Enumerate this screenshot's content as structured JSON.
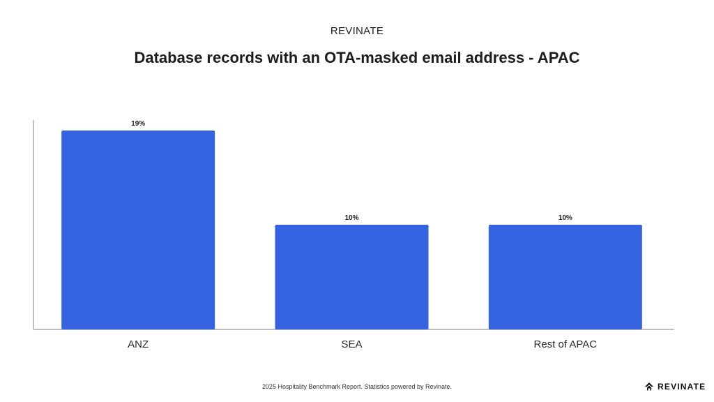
{
  "header": {
    "brand": "REVINATE",
    "title": "Database records with an OTA-masked email address - APAC"
  },
  "chart_data": {
    "type": "bar",
    "categories": [
      "ANZ",
      "SEA",
      "Rest of APAC"
    ],
    "values": [
      19,
      10,
      10
    ],
    "value_labels": [
      "19%",
      "10%",
      "10%"
    ],
    "title": "Database records with an OTA-masked email address - APAC",
    "xlabel": "",
    "ylabel": "",
    "ylim": [
      0,
      20
    ],
    "grid": false,
    "legend": "none",
    "bar_color": "#3563e0"
  },
  "footer": {
    "note": "2025 Hospitality Benchmark Report. Statistics powered by Revinate.",
    "logo_text": "REVINATE"
  }
}
